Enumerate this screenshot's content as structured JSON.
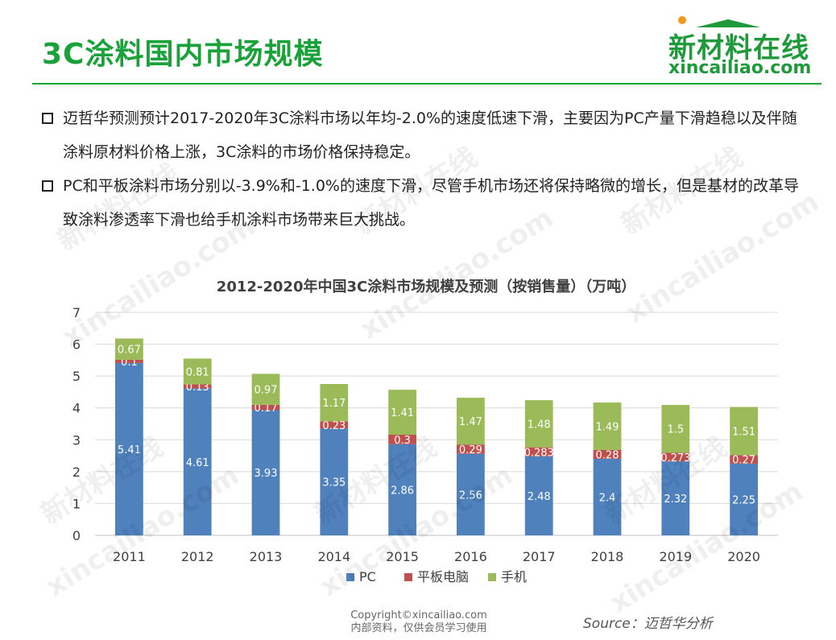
{
  "page": {
    "title": "3C涂料国内市场规模",
    "logo_cn": "新材料在线",
    "logo_en": "xincailiao.com",
    "bullets": [
      "迈哲华预测预计2017-2020年3C涂料市场以年均-2.0%的速度低速下滑，主要因为PC产量下滑趋稳以及伴随涂料原材料价格上涨，3C涂料的市场价格保持稳定。",
      "PC和平板涂料市场分别以-3.9%和-1.0%的速度下滑，尽管手机市场还将保持略微的增长，但是基材的改革导致涂料渗透率下滑也给手机涂料市场带来巨大挑战。"
    ],
    "copyright": "Copyright©xincailiao.com",
    "copyright_note": "内部资料，仅供会员学习使用",
    "source": "Source：迈哲华分析",
    "watermark_cn": "新材料在线",
    "watermark_en": "xincailiao.com"
  },
  "chart_data": {
    "type": "bar",
    "stacked": true,
    "title": "2012-2020年中国3C涂料市场规模及预测（按销售量）（万吨）",
    "xlabel": "",
    "ylabel": "",
    "ylim": [
      0,
      7
    ],
    "yticks": [
      "0",
      "1",
      "2",
      "3",
      "4",
      "5",
      "6",
      "7"
    ],
    "grid": true,
    "legend_position": "bottom",
    "categories": [
      "2011",
      "2012",
      "2013",
      "2014",
      "2015",
      "2016",
      "2017",
      "2018",
      "2019",
      "2020"
    ],
    "series": [
      {
        "name": "PC",
        "color": "#4f81bd",
        "values": [
          5.41,
          4.61,
          3.93,
          3.35,
          2.86,
          2.56,
          2.48,
          2.4,
          2.32,
          2.25
        ],
        "labels": [
          "5.41",
          "4.61",
          "3.93",
          "3.35",
          "2.86",
          "2.56",
          "2.48",
          "2.4",
          "2.32",
          "2.25"
        ]
      },
      {
        "name": "平板电脑",
        "color": "#c0504d",
        "values": [
          0.1,
          0.13,
          0.17,
          0.23,
          0.3,
          0.29,
          0.283,
          0.28,
          0.273,
          0.27
        ],
        "labels": [
          "0.1",
          "0.13",
          "0.17",
          "0.23",
          "0.3",
          "0.29",
          "0.283",
          "0.28",
          "0.273",
          "0.27"
        ]
      },
      {
        "name": "手机",
        "color": "#9bbb59",
        "values": [
          0.67,
          0.81,
          0.97,
          1.17,
          1.41,
          1.47,
          1.48,
          1.49,
          1.5,
          1.51
        ],
        "labels": [
          "0.67",
          "0.81",
          "0.97",
          "1.17",
          "1.41",
          "1.47",
          "1.48",
          "1.49",
          "1.5",
          "1.51"
        ]
      }
    ]
  }
}
